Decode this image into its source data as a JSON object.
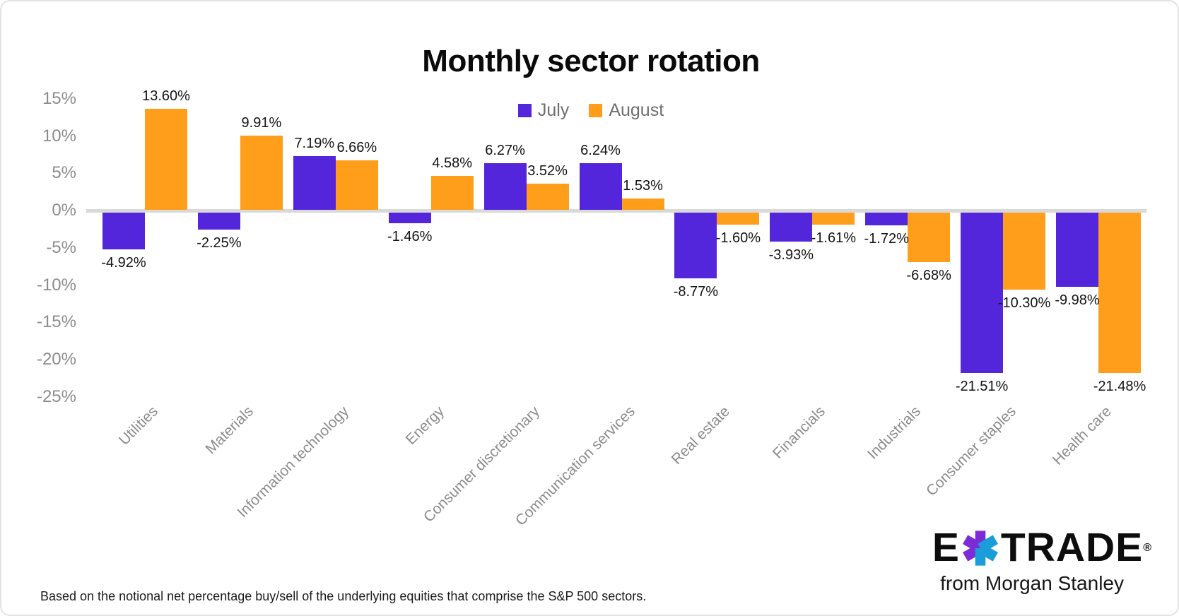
{
  "chart_data": {
    "type": "bar",
    "title": "Monthly sector rotation",
    "categories": [
      "Utilities",
      "Materials",
      "Information technology",
      "Energy",
      "Consumer discretionary",
      "Communication services",
      "Real estate",
      "Financials",
      "Industrials",
      "Consumer staples",
      "Health care"
    ],
    "series": [
      {
        "name": "July",
        "color": "#5326DB",
        "values": [
          -4.92,
          -2.25,
          7.19,
          -1.46,
          6.27,
          6.24,
          -8.77,
          -3.93,
          -1.72,
          -21.51,
          -9.98
        ],
        "labels": [
          "-4.92%",
          "-2.25%",
          "7.19%",
          "-1.46%",
          "6.27%",
          "6.24%",
          "-8.77%",
          "-3.93%",
          "-1.72%",
          "-21.51%",
          "-9.98%"
        ]
      },
      {
        "name": "August",
        "color": "#FF9E1B",
        "values": [
          13.6,
          9.91,
          6.66,
          4.58,
          3.52,
          1.53,
          -1.6,
          -1.61,
          -6.68,
          -10.3,
          -21.48
        ],
        "labels": [
          "13.60%",
          "9.91%",
          "6.66%",
          "4.58%",
          "3.52%",
          "1.53%",
          "-1.60%",
          "-1.61%",
          "-6.68%",
          "-10.30%",
          "-21.48%"
        ]
      }
    ],
    "y_ticks": [
      {
        "label": "15%",
        "value": 15
      },
      {
        "label": "10%",
        "value": 10
      },
      {
        "label": "5%",
        "value": 5
      },
      {
        "label": "0%",
        "value": 0
      },
      {
        "label": "-5%",
        "value": -5
      },
      {
        "label": "-10%",
        "value": -10
      },
      {
        "label": "-15%",
        "value": -15
      },
      {
        "label": "-20%",
        "value": -20
      },
      {
        "label": "-25%",
        "value": -25
      }
    ],
    "ylim": [
      -25,
      15
    ],
    "grid": false,
    "legend_position": "top-center",
    "baseline_color": "#D9D9D9",
    "axis_text_color": "#8C8C8C"
  },
  "footnote": "Based on the notional net percentage buy/sell of the underlying equities that comprise the S&P 500 sectors.",
  "logo": {
    "e": "E",
    "trade": "TRADE",
    "registered": "®",
    "tagline": "from Morgan Stanley",
    "asterisk_purple": "#7C2BD6",
    "asterisk_blue": "#1B9DD9"
  }
}
